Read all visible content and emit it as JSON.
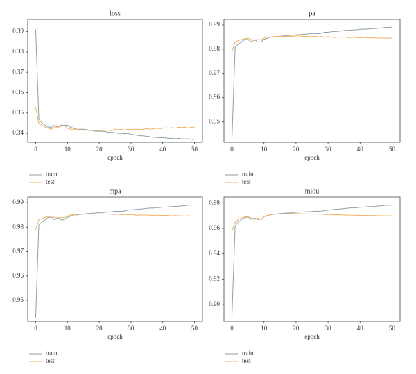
{
  "chart_data": [
    {
      "type": "line",
      "title": "loss",
      "x_label": "epoch",
      "x": [
        0,
        1,
        2,
        3,
        4,
        5,
        6,
        7,
        8,
        9,
        10,
        11,
        12,
        13,
        14,
        15,
        16,
        17,
        18,
        19,
        20,
        21,
        22,
        23,
        24,
        25,
        26,
        27,
        28,
        29,
        30,
        31,
        32,
        33,
        34,
        35,
        36,
        37,
        38,
        39,
        40,
        41,
        42,
        43,
        44,
        45,
        46,
        47,
        48,
        49,
        50
      ],
      "xlim": [
        -2.5,
        52.5
      ],
      "xticks": [
        0,
        10,
        20,
        30,
        40,
        50
      ],
      "ylim": [
        0.3356,
        0.396
      ],
      "yticks": [
        0.34,
        0.35,
        0.36,
        0.37,
        0.38,
        0.39
      ],
      "grid": false,
      "legend": "below",
      "series": [
        {
          "name": "train",
          "color": "#8c9ea6",
          "values": [
            0.391,
            0.347,
            0.345,
            0.344,
            0.343,
            0.343,
            0.344,
            0.343,
            0.344,
            0.344,
            0.344,
            0.343,
            0.3425,
            0.342,
            0.342,
            0.342,
            0.3418,
            0.3415,
            0.3413,
            0.341,
            0.341,
            0.341,
            0.3408,
            0.3405,
            0.3405,
            0.3403,
            0.34,
            0.34,
            0.3398,
            0.34,
            0.3395,
            0.3393,
            0.339,
            0.3388,
            0.3387,
            0.3385,
            0.3383,
            0.338,
            0.338,
            0.3378,
            0.3378,
            0.3377,
            0.3375,
            0.3375,
            0.3373,
            0.3375,
            0.3372,
            0.3372,
            0.3373,
            0.337,
            0.337
          ]
        },
        {
          "name": "test",
          "color": "#f0b060",
          "values": [
            0.353,
            0.345,
            0.344,
            0.343,
            0.3425,
            0.342,
            0.343,
            0.343,
            0.3435,
            0.344,
            0.3425,
            0.342,
            0.342,
            0.342,
            0.3418,
            0.3415,
            0.3415,
            0.3415,
            0.3415,
            0.3413,
            0.3413,
            0.3415,
            0.3415,
            0.3415,
            0.3413,
            0.342,
            0.3417,
            0.342,
            0.3415,
            0.342,
            0.3418,
            0.342,
            0.342,
            0.3418,
            0.342,
            0.3423,
            0.342,
            0.3422,
            0.3425,
            0.3423,
            0.3425,
            0.3427,
            0.3425,
            0.3428,
            0.3425,
            0.343,
            0.3428,
            0.343,
            0.3425,
            0.343,
            0.343
          ]
        }
      ]
    },
    {
      "type": "line",
      "title": "pa",
      "x_label": "epoch",
      "x": [
        0,
        1,
        2,
        3,
        4,
        5,
        6,
        7,
        8,
        9,
        10,
        11,
        12,
        13,
        14,
        15,
        16,
        17,
        18,
        19,
        20,
        21,
        22,
        23,
        24,
        25,
        26,
        27,
        28,
        29,
        30,
        31,
        32,
        33,
        34,
        35,
        36,
        37,
        38,
        39,
        40,
        41,
        42,
        43,
        44,
        45,
        46,
        47,
        48,
        49,
        50
      ],
      "xlim": [
        -2.5,
        52.5
      ],
      "xticks": [
        0,
        10,
        20,
        30,
        40,
        50
      ],
      "ylim": [
        0.9415,
        0.9923
      ],
      "yticks": [
        0.95,
        0.96,
        0.97,
        0.98,
        0.99
      ],
      "grid": false,
      "legend": "below",
      "series": [
        {
          "name": "train",
          "color": "#8c9ea6",
          "values": [
            0.943,
            0.981,
            0.982,
            0.983,
            0.984,
            0.984,
            0.983,
            0.984,
            0.983,
            0.983,
            0.984,
            0.9845,
            0.985,
            0.985,
            0.9852,
            0.9853,
            0.9855,
            0.9856,
            0.9857,
            0.9858,
            0.986,
            0.986,
            0.9861,
            0.9862,
            0.9863,
            0.9865,
            0.9865,
            0.9864,
            0.9866,
            0.987,
            0.987,
            0.9872,
            0.9873,
            0.9874,
            0.9875,
            0.9877,
            0.9878,
            0.9878,
            0.988,
            0.988,
            0.9882,
            0.9882,
            0.9883,
            0.9884,
            0.9885,
            0.9885,
            0.9887,
            0.9888,
            0.989,
            0.989,
            0.9891
          ]
        },
        {
          "name": "test",
          "color": "#f0b060",
          "values": [
            0.979,
            0.983,
            0.9835,
            0.984,
            0.9843,
            0.9845,
            0.984,
            0.9835,
            0.984,
            0.9838,
            0.9845,
            0.985,
            0.985,
            0.9852,
            0.9852,
            0.9853,
            0.9853,
            0.9853,
            0.9853,
            0.9853,
            0.9854,
            0.9854,
            0.9853,
            0.9853,
            0.9852,
            0.9852,
            0.9853,
            0.985,
            0.9852,
            0.985,
            0.9852,
            0.985,
            0.9848,
            0.985,
            0.9849,
            0.985,
            0.9848,
            0.9848,
            0.9849,
            0.9848,
            0.9847,
            0.9848,
            0.9847,
            0.9846,
            0.9847,
            0.9846,
            0.9846,
            0.9845,
            0.9846,
            0.9845,
            0.9845
          ]
        }
      ]
    },
    {
      "type": "line",
      "title": "mpa",
      "x_label": "epoch",
      "x": [
        0,
        1,
        2,
        3,
        4,
        5,
        6,
        7,
        8,
        9,
        10,
        11,
        12,
        13,
        14,
        15,
        16,
        17,
        18,
        19,
        20,
        21,
        22,
        23,
        24,
        25,
        26,
        27,
        28,
        29,
        30,
        31,
        32,
        33,
        34,
        35,
        36,
        37,
        38,
        39,
        40,
        41,
        42,
        43,
        44,
        45,
        46,
        47,
        48,
        49,
        50
      ],
      "xlim": [
        -2.5,
        52.5
      ],
      "xticks": [
        0,
        10,
        20,
        30,
        40,
        50
      ],
      "ylim": [
        0.9415,
        0.9923
      ],
      "yticks": [
        0.95,
        0.96,
        0.97,
        0.98,
        0.99
      ],
      "grid": false,
      "legend": "below",
      "series": [
        {
          "name": "train",
          "color": "#8c9ea6",
          "values": [
            0.943,
            0.981,
            0.982,
            0.983,
            0.984,
            0.984,
            0.983,
            0.984,
            0.983,
            0.983,
            0.984,
            0.9845,
            0.985,
            0.985,
            0.9852,
            0.9853,
            0.9855,
            0.9856,
            0.9857,
            0.9858,
            0.986,
            0.986,
            0.9861,
            0.9862,
            0.9863,
            0.9865,
            0.9865,
            0.9864,
            0.9866,
            0.987,
            0.987,
            0.9872,
            0.9873,
            0.9874,
            0.9875,
            0.9877,
            0.9878,
            0.9878,
            0.988,
            0.988,
            0.9882,
            0.9882,
            0.9883,
            0.9884,
            0.9885,
            0.9885,
            0.9887,
            0.9888,
            0.989,
            0.989,
            0.9891
          ]
        },
        {
          "name": "test",
          "color": "#f0b060",
          "values": [
            0.979,
            0.983,
            0.9835,
            0.984,
            0.9843,
            0.9845,
            0.984,
            0.9835,
            0.984,
            0.9838,
            0.9845,
            0.985,
            0.985,
            0.9852,
            0.9852,
            0.9853,
            0.9853,
            0.9853,
            0.9853,
            0.9853,
            0.9854,
            0.9854,
            0.9853,
            0.9853,
            0.9852,
            0.9852,
            0.9853,
            0.985,
            0.9852,
            0.985,
            0.9852,
            0.985,
            0.9848,
            0.985,
            0.9849,
            0.985,
            0.9848,
            0.9848,
            0.9849,
            0.9848,
            0.9847,
            0.9848,
            0.9847,
            0.9846,
            0.9847,
            0.9846,
            0.9846,
            0.9845,
            0.9846,
            0.9845,
            0.9845
          ]
        }
      ]
    },
    {
      "type": "line",
      "title": "miou",
      "x_label": "epoch",
      "x": [
        0,
        1,
        2,
        3,
        4,
        5,
        6,
        7,
        8,
        9,
        10,
        11,
        12,
        13,
        14,
        15,
        16,
        17,
        18,
        19,
        20,
        21,
        22,
        23,
        24,
        25,
        26,
        27,
        28,
        29,
        30,
        31,
        32,
        33,
        34,
        35,
        36,
        37,
        38,
        39,
        40,
        41,
        42,
        43,
        44,
        45,
        46,
        47,
        48,
        49,
        50
      ],
      "xlim": [
        -2.5,
        52.5
      ],
      "xticks": [
        0,
        10,
        20,
        30,
        40,
        50
      ],
      "ylim": [
        0.887,
        0.9845
      ],
      "yticks": [
        {
          "value": 0.9,
          "label": "0.90"
        },
        0.92,
        0.94,
        0.96,
        0.98
      ],
      "grid": false,
      "legend": "below",
      "series": [
        {
          "name": "train",
          "color": "#8c9ea6",
          "values": [
            0.892,
            0.962,
            0.965,
            0.967,
            0.968,
            0.969,
            0.967,
            0.968,
            0.967,
            0.967,
            0.969,
            0.97,
            0.9705,
            0.971,
            0.9712,
            0.9715,
            0.9718,
            0.972,
            0.972,
            0.9722,
            0.9725,
            0.9727,
            0.9728,
            0.973,
            0.973,
            0.9732,
            0.9735,
            0.9733,
            0.9735,
            0.974,
            0.9742,
            0.9745,
            0.9748,
            0.975,
            0.9752,
            0.9755,
            0.9757,
            0.976,
            0.976,
            0.9762,
            0.9765,
            0.9767,
            0.9768,
            0.977,
            0.977,
            0.9772,
            0.9775,
            0.9777,
            0.978,
            0.978,
            0.9782
          ]
        },
        {
          "name": "test",
          "color": "#f0b060",
          "values": [
            0.958,
            0.965,
            0.967,
            0.968,
            0.969,
            0.969,
            0.968,
            0.967,
            0.968,
            0.967,
            0.969,
            0.97,
            0.9705,
            0.971,
            0.971,
            0.9712,
            0.9713,
            0.9713,
            0.9714,
            0.9714,
            0.9715,
            0.9714,
            0.9713,
            0.9713,
            0.9712,
            0.9712,
            0.9712,
            0.971,
            0.971,
            0.9708,
            0.9708,
            0.9707,
            0.9705,
            0.9706,
            0.9705,
            0.9704,
            0.9703,
            0.9703,
            0.9702,
            0.9702,
            0.9701,
            0.97,
            0.97,
            0.97,
            0.9699,
            0.9699,
            0.9698,
            0.9698,
            0.9697,
            0.9697,
            0.9697
          ]
        }
      ]
    }
  ]
}
